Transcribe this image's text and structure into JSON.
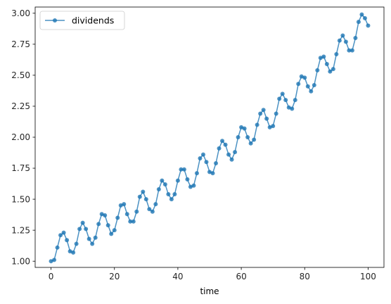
{
  "chart_data": {
    "type": "line",
    "xlabel": "time",
    "ylabel": "",
    "title": "",
    "xlim": [
      -5,
      105
    ],
    "ylim": [
      0.95,
      3.05
    ],
    "xticks": [
      0,
      20,
      40,
      60,
      80,
      100
    ],
    "yticks": [
      1.0,
      1.25,
      1.5,
      1.75,
      2.0,
      2.25,
      2.5,
      2.75,
      3.0
    ],
    "xtick_labels": [
      "0",
      "20",
      "40",
      "60",
      "80",
      "100"
    ],
    "ytick_labels": [
      "1.00",
      "1.25",
      "1.50",
      "1.75",
      "2.00",
      "2.25",
      "2.50",
      "2.75",
      "3.00"
    ],
    "grid": false,
    "legend": {
      "position": "top-left",
      "entries": [
        "dividends"
      ]
    },
    "colors": {
      "line": "#1f77b4",
      "marker": "#1f77b4",
      "axes": "#000000"
    },
    "series": [
      {
        "name": "dividends",
        "x": [
          0,
          1,
          2,
          3,
          4,
          5,
          6,
          7,
          8,
          9,
          10,
          11,
          12,
          13,
          14,
          15,
          16,
          17,
          18,
          19,
          20,
          21,
          22,
          23,
          24,
          25,
          26,
          27,
          28,
          29,
          30,
          31,
          32,
          33,
          34,
          35,
          36,
          37,
          38,
          39,
          40,
          41,
          42,
          43,
          44,
          45,
          46,
          47,
          48,
          49,
          50,
          51,
          52,
          53,
          54,
          55,
          56,
          57,
          58,
          59,
          60,
          61,
          62,
          63,
          64,
          65,
          66,
          67,
          68,
          69,
          70,
          71,
          72,
          73,
          74,
          75,
          76,
          77,
          78,
          79,
          80,
          81,
          82,
          83,
          84,
          85,
          86,
          87,
          88,
          89,
          90,
          91,
          92,
          93,
          94,
          95,
          96,
          97,
          98,
          99,
          100
        ],
        "values": [
          1.0,
          1.01,
          1.11,
          1.21,
          1.23,
          1.17,
          1.08,
          1.07,
          1.14,
          1.26,
          1.31,
          1.26,
          1.18,
          1.14,
          1.19,
          1.3,
          1.38,
          1.37,
          1.29,
          1.22,
          1.25,
          1.35,
          1.45,
          1.46,
          1.38,
          1.32,
          1.32,
          1.4,
          1.52,
          1.56,
          1.5,
          1.42,
          1.4,
          1.46,
          1.58,
          1.65,
          1.62,
          1.54,
          1.5,
          1.54,
          1.65,
          1.74,
          1.74,
          1.66,
          1.6,
          1.61,
          1.71,
          1.83,
          1.86,
          1.8,
          1.72,
          1.71,
          1.79,
          1.91,
          1.97,
          1.94,
          1.86,
          1.82,
          1.88,
          2.0,
          2.08,
          2.07,
          2.0,
          1.95,
          1.98,
          2.1,
          2.19,
          2.22,
          2.15,
          2.08,
          2.09,
          2.19,
          2.31,
          2.35,
          2.3,
          2.24,
          2.23,
          2.3,
          2.43,
          2.49,
          2.48,
          2.41,
          2.37,
          2.42,
          2.54,
          2.64,
          2.65,
          2.59,
          2.53,
          2.55,
          2.67,
          2.78,
          2.82,
          2.77,
          2.7,
          2.7,
          2.8,
          2.93,
          2.99,
          2.96,
          2.9
        ]
      }
    ]
  }
}
